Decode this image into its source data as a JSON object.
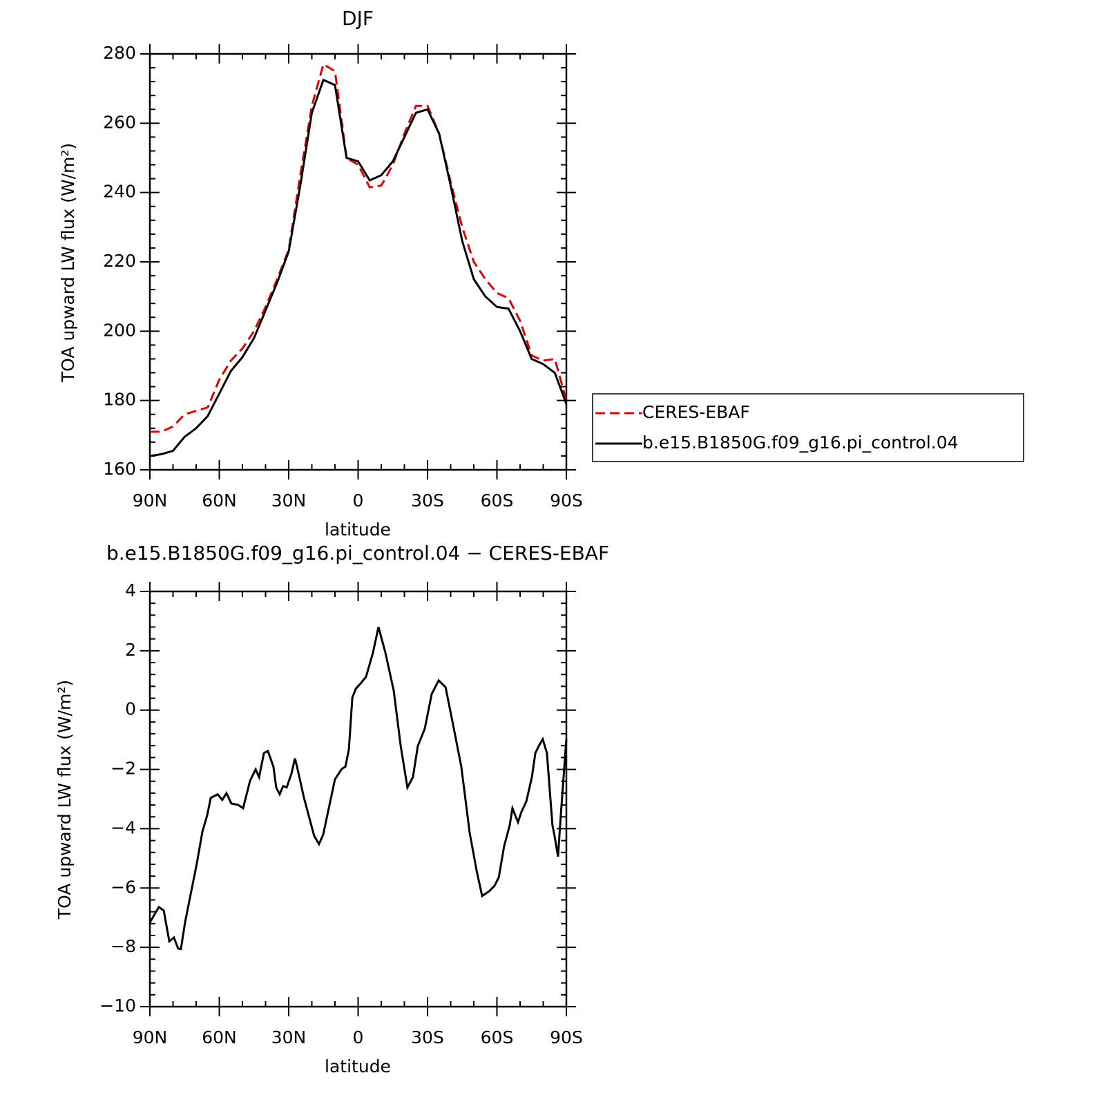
{
  "chart_data": [
    {
      "type": "line",
      "title": "DJF",
      "xlabel": "latitude",
      "ylabel": "TOA upward LW flux (W/m²)",
      "x": [
        90,
        85,
        80,
        75,
        70,
        65,
        60,
        55,
        50,
        45,
        40,
        35,
        30,
        25,
        20,
        15,
        10,
        5,
        0,
        -5,
        -10,
        -15,
        -20,
        -25,
        -30,
        -35,
        -40,
        -45,
        -50,
        -55,
        -60,
        -65,
        -70,
        -75,
        -80,
        -85,
        -90
      ],
      "series": [
        {
          "name": "CERES-EBAF",
          "color": "#e00000",
          "dashed": true,
          "values": [
            171,
            171,
            172.5,
            176,
            177,
            178,
            186,
            191.5,
            195,
            200,
            207,
            215,
            223.5,
            245,
            265,
            277,
            275,
            250,
            248,
            241.5,
            242,
            248,
            257,
            265,
            265,
            257,
            243,
            230,
            220,
            215,
            211,
            209.5,
            203,
            193,
            191.5,
            192,
            180
          ]
        },
        {
          "name": "b.e15.B1850G.f09_g16.pi_control.04",
          "color": "#000000",
          "dashed": false,
          "values": [
            164,
            164.5,
            165.5,
            169.5,
            172,
            175.5,
            182,
            188.5,
            192.5,
            198,
            206,
            214,
            223,
            242,
            263,
            272.5,
            271,
            250,
            249,
            243.5,
            245,
            249,
            256,
            263,
            264,
            257,
            242,
            226,
            215,
            210,
            207,
            206.5,
            200,
            192,
            190.5,
            188,
            179
          ]
        }
      ],
      "xlim": [
        90,
        -90
      ],
      "xticks": [
        {
          "value": 90,
          "label": "90N"
        },
        {
          "value": 60,
          "label": "60N"
        },
        {
          "value": 30,
          "label": "30N"
        },
        0,
        {
          "value": -30,
          "label": "30S"
        },
        {
          "value": -60,
          "label": "60S"
        },
        {
          "value": -90,
          "label": "90S"
        }
      ],
      "ylim": [
        160,
        280
      ],
      "yticks": [
        160,
        180,
        200,
        220,
        240,
        260,
        280
      ],
      "legend": "right"
    },
    {
      "type": "line",
      "title": "b.e15.B1850G.f09_g16.pi_control.04 − CERES-EBAF",
      "xlabel": "latitude",
      "ylabel": "TOA upward LW flux (W/m²)",
      "x": [
        90,
        86.1,
        84,
        81.6,
        79.6,
        77.8,
        76.6,
        74.8,
        72.7,
        69.7,
        67.3,
        65.2,
        63.7,
        60.7,
        58.7,
        56.9,
        54.8,
        51.8,
        49.7,
        46.7,
        44.3,
        42.8,
        40.7,
        39,
        36.6,
        35.4,
        33.9,
        32.4,
        30.9,
        28.8,
        27.3,
        26.4,
        23.4,
        21,
        19,
        16.9,
        15.1,
        13,
        10,
        7,
        5.5,
        4,
        2.5,
        1,
        -1,
        -3.4,
        -6.4,
        -8.8,
        -11.8,
        -15.4,
        -18.4,
        -21.3,
        -23.7,
        -25.8,
        -28.8,
        -31.8,
        -34.8,
        -37.8,
        -40.8,
        -44.6,
        -48.2,
        -51.2,
        -53.6,
        -56.6,
        -59,
        -60.8,
        -63.1,
        -65.5,
        -66.7,
        -69.1,
        -70.6,
        -72.7,
        -75.1,
        -76.6,
        -78.1,
        -79.8,
        -81.6,
        -84,
        -84.9,
        -86.4,
        -87.6,
        -90
      ],
      "series": [
        {
          "name": "b.e15.B1850G.f09_g16.pi_control.04 − CERES-EBAF",
          "color": "#000000",
          "dashed": false,
          "values": [
            -7.16,
            -6.64,
            -6.76,
            -7.8,
            -7.67,
            -8.04,
            -8.06,
            -7.16,
            -6.34,
            -5.17,
            -4.1,
            -3.54,
            -2.96,
            -2.84,
            -3.03,
            -2.8,
            -3.15,
            -3.2,
            -3.31,
            -2.38,
            -2.0,
            -2.26,
            -1.45,
            -1.38,
            -1.91,
            -2.61,
            -2.84,
            -2.56,
            -2.61,
            -2.14,
            -1.63,
            -1.91,
            -2.96,
            -3.66,
            -4.24,
            -4.52,
            -4.2,
            -3.43,
            -2.33,
            -1.98,
            -1.91,
            -1.33,
            0.42,
            0.72,
            0.89,
            1.12,
            1.93,
            2.8,
            1.93,
            0.65,
            -1.21,
            -2.61,
            -2.26,
            -1.21,
            -0.63,
            0.54,
            1.0,
            0.77,
            -0.4,
            -1.91,
            -4.13,
            -5.41,
            -6.27,
            -6.11,
            -5.92,
            -5.64,
            -4.59,
            -3.89,
            -3.31,
            -3.78,
            -3.43,
            -3.08,
            -2.26,
            -1.45,
            -1.21,
            -0.98,
            -1.45,
            -3.89,
            -4.24,
            -4.94,
            -3.54,
            -0.98
          ]
        }
      ],
      "xlim": [
        90,
        -90
      ],
      "xticks": [
        {
          "value": 90,
          "label": "90N"
        },
        {
          "value": 60,
          "label": "60N"
        },
        {
          "value": 30,
          "label": "30N"
        },
        0,
        {
          "value": -30,
          "label": "30S"
        },
        {
          "value": -60,
          "label": "60S"
        },
        {
          "value": -90,
          "label": "90S"
        }
      ],
      "ylim": [
        -10,
        4
      ],
      "yticks": [
        {
          "value": -10,
          "label": "−10"
        },
        {
          "value": -8,
          "label": "−8"
        },
        {
          "value": -6,
          "label": "−6"
        },
        {
          "value": -4,
          "label": "−4"
        },
        {
          "value": -2,
          "label": "−2"
        },
        0,
        2,
        4
      ]
    }
  ]
}
